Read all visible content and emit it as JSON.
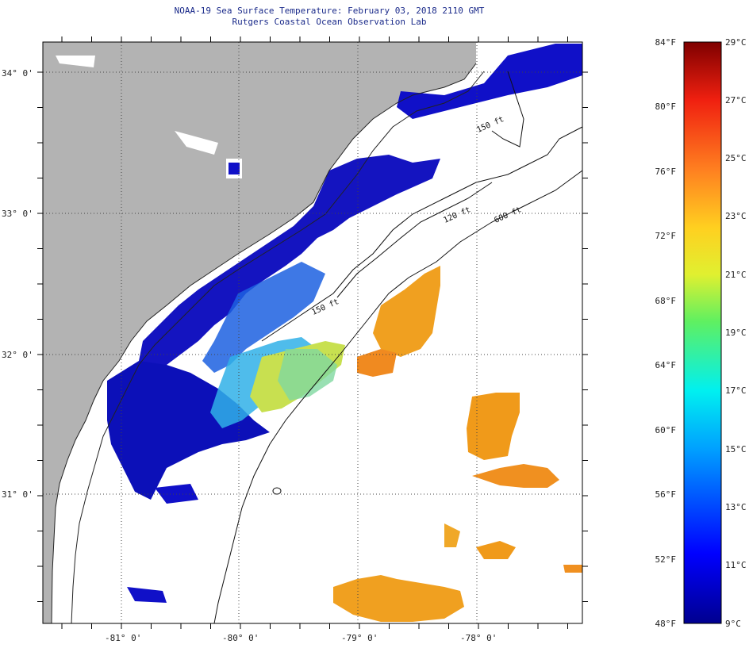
{
  "header": {
    "title": "NOAA-19 Sea Surface Temperature:  February 03, 2018 2110 GMT",
    "subtitle": "Rutgers Coastal Ocean Observation Lab"
  },
  "map": {
    "lat_labels": [
      {
        "key": "lat34",
        "text": "34° 0'"
      },
      {
        "key": "lat33",
        "text": "33° 0'"
      },
      {
        "key": "lat32",
        "text": "32° 0'"
      },
      {
        "key": "lat31",
        "text": "31° 0'"
      }
    ],
    "lon_labels": [
      {
        "key": "lon81",
        "text": "-81° 0'"
      },
      {
        "key": "lon80",
        "text": "-80° 0'"
      },
      {
        "key": "lon79",
        "text": "-79° 0'"
      },
      {
        "key": "lon78",
        "text": "-78° 0'"
      }
    ],
    "contour_labels": [
      "120 ft",
      "600 ft",
      "150 ft",
      "150 ft"
    ],
    "colors": {
      "land": "#b3b3b3",
      "cloud": "#ffffff",
      "cold": "#1010c8",
      "warm": "#f0a020"
    }
  },
  "colorbar": {
    "fahrenheit": [
      "84°F",
      "80°F",
      "76°F",
      "72°F",
      "68°F",
      "64°F",
      "60°F",
      "56°F",
      "52°F",
      "48°F"
    ],
    "celsius": [
      "29°C",
      "27°C",
      "25°C",
      "23°C",
      "21°C",
      "19°C",
      "17°C",
      "15°C",
      "13°C",
      "11°C",
      "9°C"
    ],
    "range_f": [
      48,
      84
    ],
    "range_c": [
      9,
      29
    ]
  }
}
